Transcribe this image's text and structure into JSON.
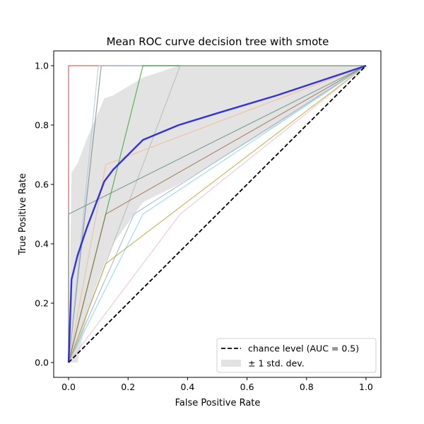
{
  "chart_data": {
    "type": "line",
    "title": "Mean ROC curve decision tree with smote",
    "xlabel": "False Positive Rate",
    "ylabel": "True Positive Rate",
    "xlim": [
      -0.05,
      1.05
    ],
    "ylim": [
      -0.05,
      1.05
    ],
    "xticks": [
      "0.0",
      "0.2",
      "0.4",
      "0.6",
      "0.8",
      "1.0"
    ],
    "yticks": [
      "0.0",
      "0.2",
      "0.4",
      "0.6",
      "0.8",
      "1.0"
    ],
    "grid": false,
    "legend_position": "bottom-right",
    "legend": [
      {
        "label": "chance level (AUC = 0.5)",
        "kind": "dashed-line",
        "color": "#000000"
      },
      {
        "label": "± 1 std. dev.",
        "kind": "band",
        "color": "#c8c8c8"
      }
    ],
    "chance_line": {
      "x": [
        0,
        1
      ],
      "y": [
        0,
        1
      ],
      "color": "#000000"
    },
    "mean_curve": {
      "color": "#1f1fdd",
      "x": [
        0,
        0.01,
        0.03,
        0.06,
        0.09,
        0.12,
        0.15,
        0.2,
        0.25,
        0.31,
        0.37,
        0.5,
        0.7,
        0.85,
        1.0
      ],
      "y": [
        0,
        0.28,
        0.36,
        0.45,
        0.53,
        0.61,
        0.65,
        0.7,
        0.75,
        0.775,
        0.8,
        0.84,
        0.9,
        0.95,
        1.0
      ]
    },
    "std_band": {
      "color": "#c8c8c8",
      "x": [
        0,
        0.01,
        0.03,
        0.06,
        0.09,
        0.12,
        0.15,
        0.2,
        0.25,
        0.31,
        0.37,
        0.5,
        0.7,
        0.85,
        1.0
      ],
      "upper": [
        0,
        0.64,
        0.67,
        0.75,
        0.82,
        0.89,
        0.9,
        0.93,
        0.96,
        0.98,
        1.0,
        1.0,
        1.0,
        1.0,
        1.0
      ],
      "lower": [
        0,
        0.0,
        0.0,
        0.15,
        0.25,
        0.33,
        0.4,
        0.47,
        0.54,
        0.57,
        0.6,
        0.68,
        0.8,
        0.9,
        1.0
      ]
    },
    "fold_curves": [
      {
        "color": "#d62728",
        "x": [
          0,
          0,
          1
        ],
        "y": [
          0,
          1,
          1
        ]
      },
      {
        "color": "#7f7f7f",
        "x": [
          0,
          0.11,
          1
        ],
        "y": [
          0,
          1,
          1
        ]
      },
      {
        "color": "#9fc9dc",
        "x": [
          0,
          0.1,
          1
        ],
        "y": [
          0,
          1,
          1
        ]
      },
      {
        "color": "#2ca02c",
        "x": [
          0,
          0.25,
          1
        ],
        "y": [
          0,
          1,
          1
        ]
      },
      {
        "color": "#b5b5b5",
        "x": [
          0,
          0.375,
          1
        ],
        "y": [
          0,
          1,
          1
        ]
      },
      {
        "color": "#5f8f7f",
        "x": [
          0,
          0,
          1
        ],
        "y": [
          0,
          0.5,
          1
        ]
      },
      {
        "color": "#f4b88a",
        "x": [
          0,
          0.125,
          1
        ],
        "y": [
          0,
          0.667,
          1
        ]
      },
      {
        "color": "#9b6b4b",
        "x": [
          0,
          0.125,
          1
        ],
        "y": [
          0,
          0.5,
          1
        ]
      },
      {
        "color": "#8fa8c8",
        "x": [
          0,
          0.22,
          1
        ],
        "y": [
          0,
          0.5,
          1
        ]
      },
      {
        "color": "#7fd3e3",
        "x": [
          0,
          0.25,
          1
        ],
        "y": [
          0,
          0.5,
          1
        ]
      },
      {
        "color": "#b8a030",
        "x": [
          0,
          0.125,
          1
        ],
        "y": [
          0,
          0.333,
          1
        ]
      },
      {
        "color": "#f0b8cf",
        "x": [
          0,
          0.375,
          1
        ],
        "y": [
          0,
          0.5,
          1
        ]
      }
    ]
  }
}
